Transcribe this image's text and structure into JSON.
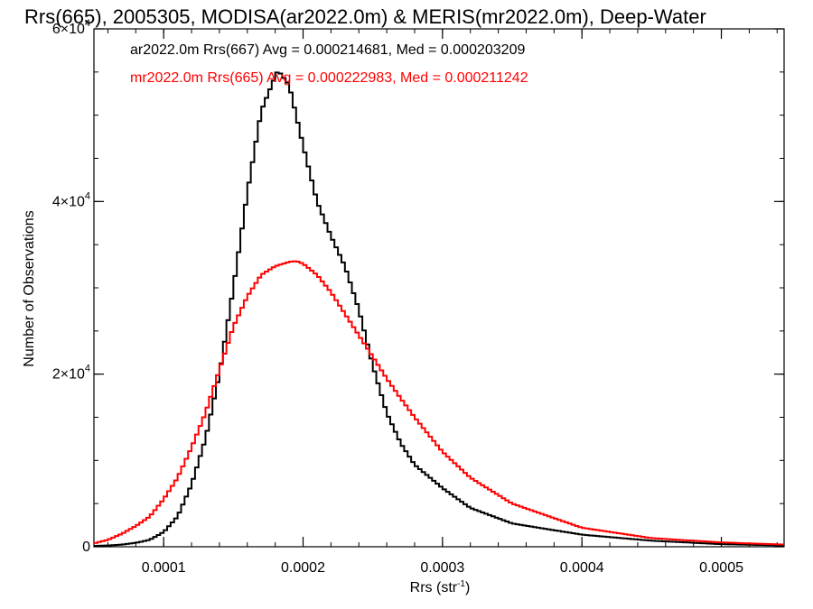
{
  "chart_data": {
    "type": "line",
    "title": "Rrs(665), 2005305, MODISA(ar2022.0m) & MERIS(mr2022.0m), Deep-Water",
    "xlabel": "Rrs (str",
    "xlabel_unit_exp": "-1",
    "xlabel_close": ")",
    "ylabel": "Number of Observations",
    "xlim": [
      5e-05,
      0.000545
    ],
    "ylim": [
      0,
      60000
    ],
    "x_ticks": [
      {
        "value": 0.0001,
        "label": "0.0001"
      },
      {
        "value": 0.0002,
        "label": "0.0002"
      },
      {
        "value": 0.0003,
        "label": "0.0003"
      },
      {
        "value": 0.0004,
        "label": "0.0004"
      },
      {
        "value": 0.0005,
        "label": "0.0005"
      }
    ],
    "y_ticks": [
      {
        "value": 0,
        "label": "0"
      },
      {
        "value": 20000,
        "label": "2×10",
        "exp": "4"
      },
      {
        "value": 40000,
        "label": "4×10",
        "exp": "4"
      },
      {
        "value": 60000,
        "label": "6×10",
        "exp": "4"
      }
    ],
    "grid": false,
    "legend_position": "top-left",
    "series": [
      {
        "name": "ar2022.0m Rrs(667) Avg = 0.000214681, Med = 0.000203209",
        "color": "#000000",
        "x": [
          5e-05,
          6e-05,
          7e-05,
          8e-05,
          9e-05,
          0.0001,
          0.00011,
          0.00012,
          0.00013,
          0.00014,
          0.00015,
          0.00016,
          0.00017,
          0.00018,
          0.000182,
          0.00019,
          0.0002,
          0.00021,
          0.00022,
          0.00023,
          0.00024,
          0.00025,
          0.00026,
          0.00027,
          0.00028,
          0.0003,
          0.00032,
          0.00035,
          0.0004,
          0.00045,
          0.0005,
          0.000545
        ],
        "y": [
          100,
          150,
          250,
          450,
          800,
          1700,
          3500,
          7200,
          12500,
          20000,
          30000,
          41000,
          50500,
          54500,
          55200,
          53500,
          46500,
          40000,
          36000,
          32500,
          27500,
          21000,
          15500,
          12000,
          9500,
          6800,
          4500,
          2700,
          1400,
          700,
          300,
          150
        ]
      },
      {
        "name": "mr2022.0m Rrs(665) Avg = 0.000222983, Med = 0.000211242",
        "color": "#ff0000",
        "x": [
          5e-05,
          6e-05,
          7e-05,
          8e-05,
          9e-05,
          0.0001,
          0.00011,
          0.00012,
          0.00013,
          0.00014,
          0.00015,
          0.00016,
          0.00017,
          0.00018,
          0.00019,
          0.000195,
          0.0002,
          0.00021,
          0.00022,
          0.00023,
          0.00024,
          0.00025,
          0.00026,
          0.00027,
          0.00028,
          0.0003,
          0.00032,
          0.00035,
          0.0004,
          0.00045,
          0.0005,
          0.000545
        ],
        "y": [
          400,
          800,
          1500,
          2400,
          3500,
          5500,
          8000,
          11500,
          15500,
          20500,
          25500,
          29000,
          31500,
          32500,
          33000,
          33100,
          32800,
          31500,
          29500,
          27000,
          24500,
          22000,
          19500,
          17200,
          15000,
          11000,
          8000,
          5000,
          2200,
          1000,
          500,
          250
        ]
      }
    ]
  }
}
